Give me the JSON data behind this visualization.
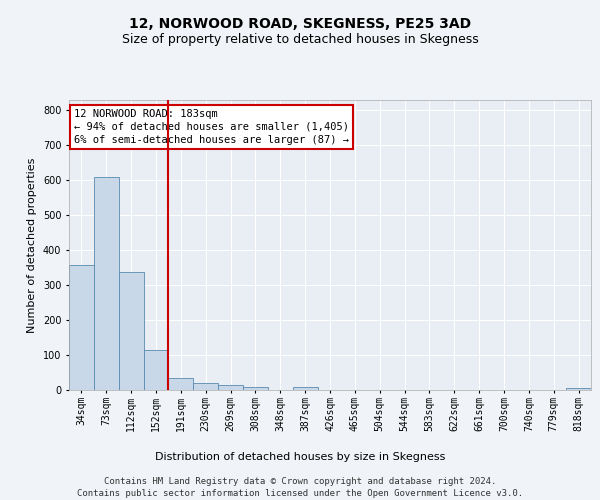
{
  "title": "12, NORWOOD ROAD, SKEGNESS, PE25 3AD",
  "subtitle": "Size of property relative to detached houses in Skegness",
  "xlabel": "Distribution of detached houses by size in Skegness",
  "ylabel": "Number of detached properties",
  "bin_labels": [
    "34sqm",
    "73sqm",
    "112sqm",
    "152sqm",
    "191sqm",
    "230sqm",
    "269sqm",
    "308sqm",
    "348sqm",
    "387sqm",
    "426sqm",
    "465sqm",
    "504sqm",
    "544sqm",
    "583sqm",
    "622sqm",
    "661sqm",
    "700sqm",
    "740sqm",
    "779sqm",
    "818sqm"
  ],
  "bar_heights": [
    358,
    611,
    337,
    114,
    35,
    20,
    15,
    10,
    0,
    8,
    0,
    0,
    0,
    0,
    0,
    0,
    0,
    0,
    0,
    0,
    7
  ],
  "bar_color": "#c8d8e8",
  "bar_edge_color": "#5a8ab0",
  "ylim": [
    0,
    830
  ],
  "yticks": [
    0,
    100,
    200,
    300,
    400,
    500,
    600,
    700,
    800
  ],
  "red_line_x": 3.5,
  "annotation_text": "12 NORWOOD ROAD: 183sqm\n← 94% of detached houses are smaller (1,405)\n6% of semi-detached houses are larger (87) →",
  "footer_line1": "Contains HM Land Registry data © Crown copyright and database right 2024.",
  "footer_line2": "Contains public sector information licensed under the Open Government Licence v3.0.",
  "background_color": "#f0f4f8",
  "plot_bg_color": "#e8eef4",
  "grid_color": "#ffffff",
  "annotation_box_color": "#ffffff",
  "annotation_box_edge": "#cc0000",
  "red_line_color": "#cc0000",
  "title_fontsize": 10,
  "subtitle_fontsize": 9,
  "axis_label_fontsize": 8,
  "tick_fontsize": 7,
  "annotation_fontsize": 7.5,
  "footer_fontsize": 6.5
}
